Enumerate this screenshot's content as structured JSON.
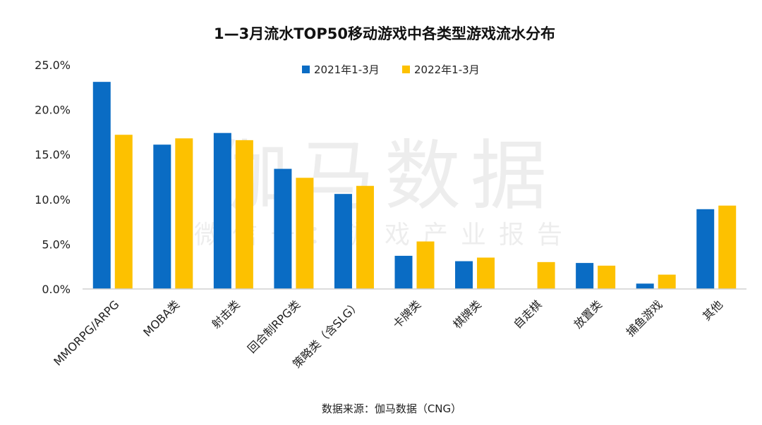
{
  "chart_data": {
    "type": "bar",
    "title": "1—3月流水TOP50移动游戏中各类型游戏流水分布",
    "categories": [
      "MMORPG/ARPG",
      "MOBA类",
      "射击类",
      "回合制RPG类",
      "策略类（含SLG）",
      "卡牌类",
      "棋牌类",
      "自走棋",
      "放置类",
      "捕鱼游戏",
      "其他"
    ],
    "series": [
      {
        "name": "2021年1-3月",
        "color": "#0a6cc4",
        "values": [
          23.1,
          16.1,
          17.4,
          13.4,
          10.6,
          3.7,
          3.1,
          0.0,
          2.9,
          0.6,
          8.9
        ]
      },
      {
        "name": "2022年1-3月",
        "color": "#fdc100",
        "values": [
          17.2,
          16.8,
          16.6,
          12.4,
          11.5,
          5.3,
          3.5,
          3.0,
          2.6,
          1.6,
          9.3
        ]
      }
    ],
    "ylim": [
      0,
      25
    ],
    "yticks": [
      "0.0%",
      "5.0%",
      "10.0%",
      "15.0%",
      "20.0%",
      "25.0%"
    ],
    "xlabel": "",
    "ylabel": "",
    "legend": "top-center",
    "grid": false
  },
  "watermark": {
    "main": "伽马数据",
    "sub": "微信号：游戏产业报告"
  },
  "source": "数据来源：伽马数据（CNG）"
}
